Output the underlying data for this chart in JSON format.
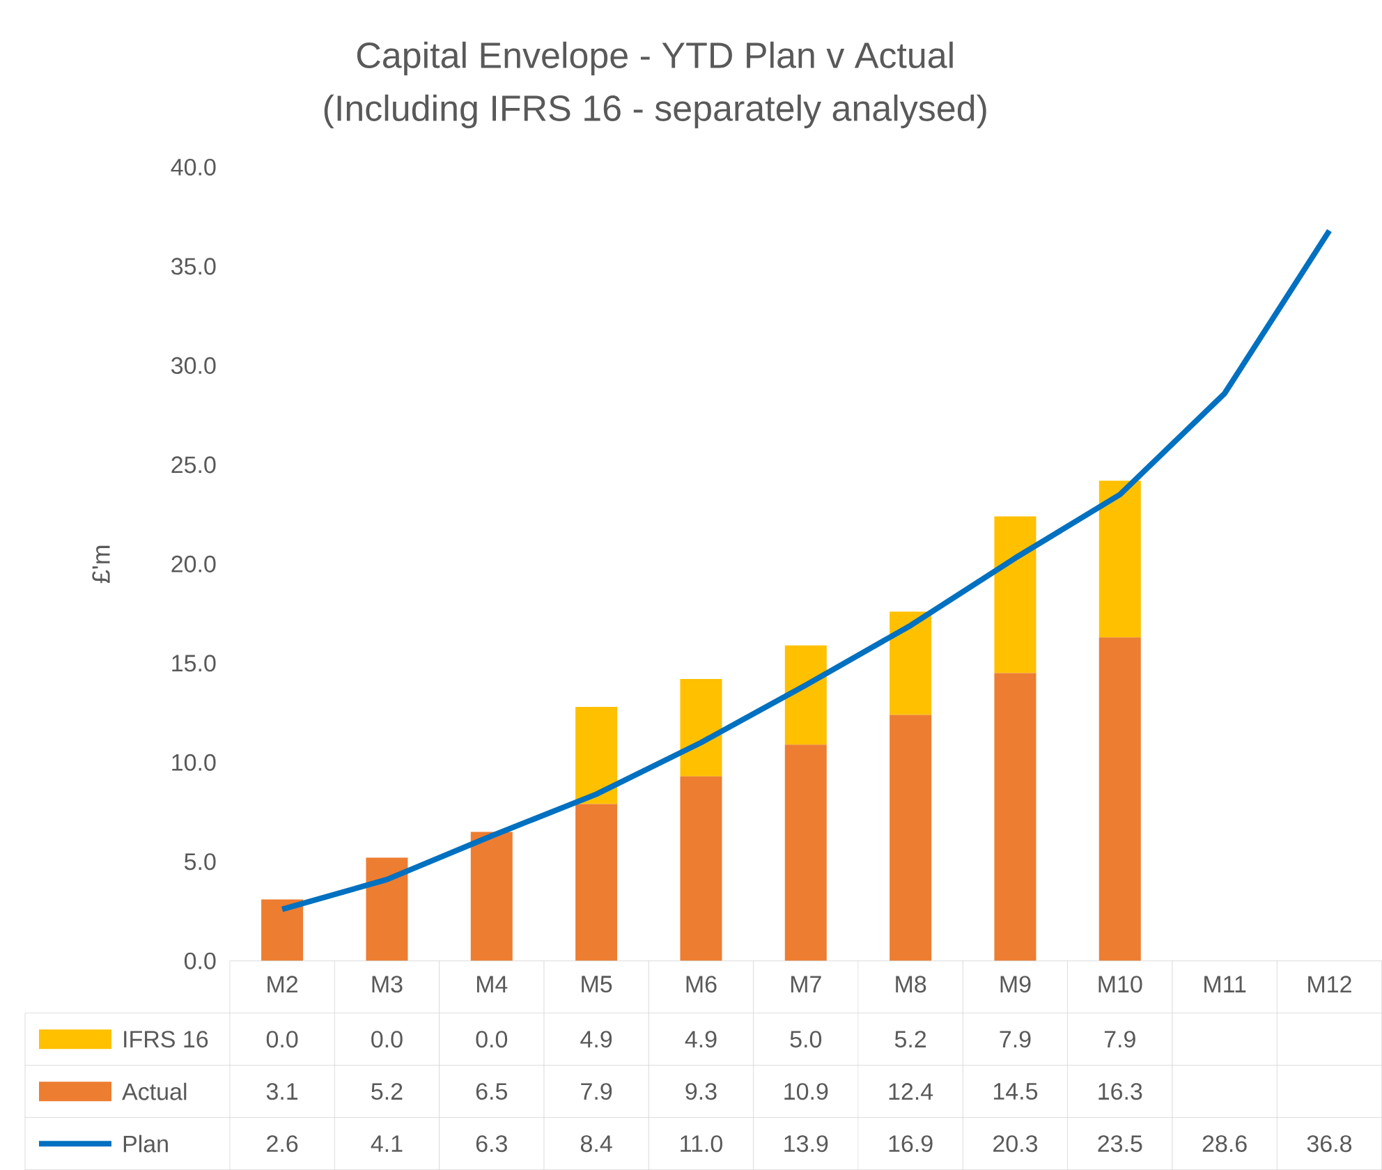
{
  "chart_data": {
    "type": "bar",
    "title": "Capital Envelope - YTD Plan v Actual",
    "subtitle": "(Including IFRS 16 - separately analysed)",
    "ylabel": "£'m",
    "categories": [
      "M2",
      "M3",
      "M4",
      "M5",
      "M6",
      "M7",
      "M8",
      "M9",
      "M10",
      "M11",
      "M12"
    ],
    "stacked": true,
    "legend": "bottom",
    "grid": false,
    "ylim": [
      0,
      40
    ],
    "yticks": [
      {
        "value": 0,
        "label": "0.0"
      },
      {
        "value": 5,
        "label": "5.0"
      },
      {
        "value": 10,
        "label": "10.0"
      },
      {
        "value": 15,
        "label": "15.0"
      },
      {
        "value": 20,
        "label": "20.0"
      },
      {
        "value": 25,
        "label": "25.0"
      },
      {
        "value": 30,
        "label": "30.0"
      },
      {
        "value": 35,
        "label": "35.0"
      },
      {
        "value": 40,
        "label": "40.0"
      }
    ],
    "series": [
      {
        "name": "Actual",
        "color": "#ed7d31",
        "values": [
          3.1,
          5.2,
          6.5,
          7.9,
          9.3,
          10.9,
          12.4,
          14.5,
          16.3,
          null,
          null
        ],
        "value_labels": [
          "3.1",
          "5.2",
          "6.5",
          "7.9",
          "9.3",
          "10.9",
          "12.4",
          "14.5",
          "16.3",
          null,
          null
        ]
      },
      {
        "name": "IFRS 16",
        "color": "#ffc000",
        "values": [
          0.0,
          0.0,
          0.0,
          4.9,
          4.9,
          5.0,
          5.2,
          7.9,
          7.9,
          null,
          null
        ],
        "value_labels": [
          "0.0",
          "0.0",
          "0.0",
          "4.9",
          "4.9",
          "5.0",
          "5.2",
          "7.9",
          "7.9",
          null,
          null
        ]
      },
      {
        "name": "Plan",
        "type": "line",
        "color": "#0070c0",
        "marker": "none",
        "line_style": "solid",
        "values": [
          2.6,
          4.1,
          6.3,
          8.4,
          11.0,
          13.9,
          16.9,
          20.3,
          23.5,
          28.6,
          36.8
        ],
        "value_labels": [
          "2.6",
          "4.1",
          "6.3",
          "8.4",
          "11.0",
          "13.9",
          "16.9",
          "20.3",
          "23.5",
          "28.6",
          "36.8"
        ]
      }
    ]
  }
}
